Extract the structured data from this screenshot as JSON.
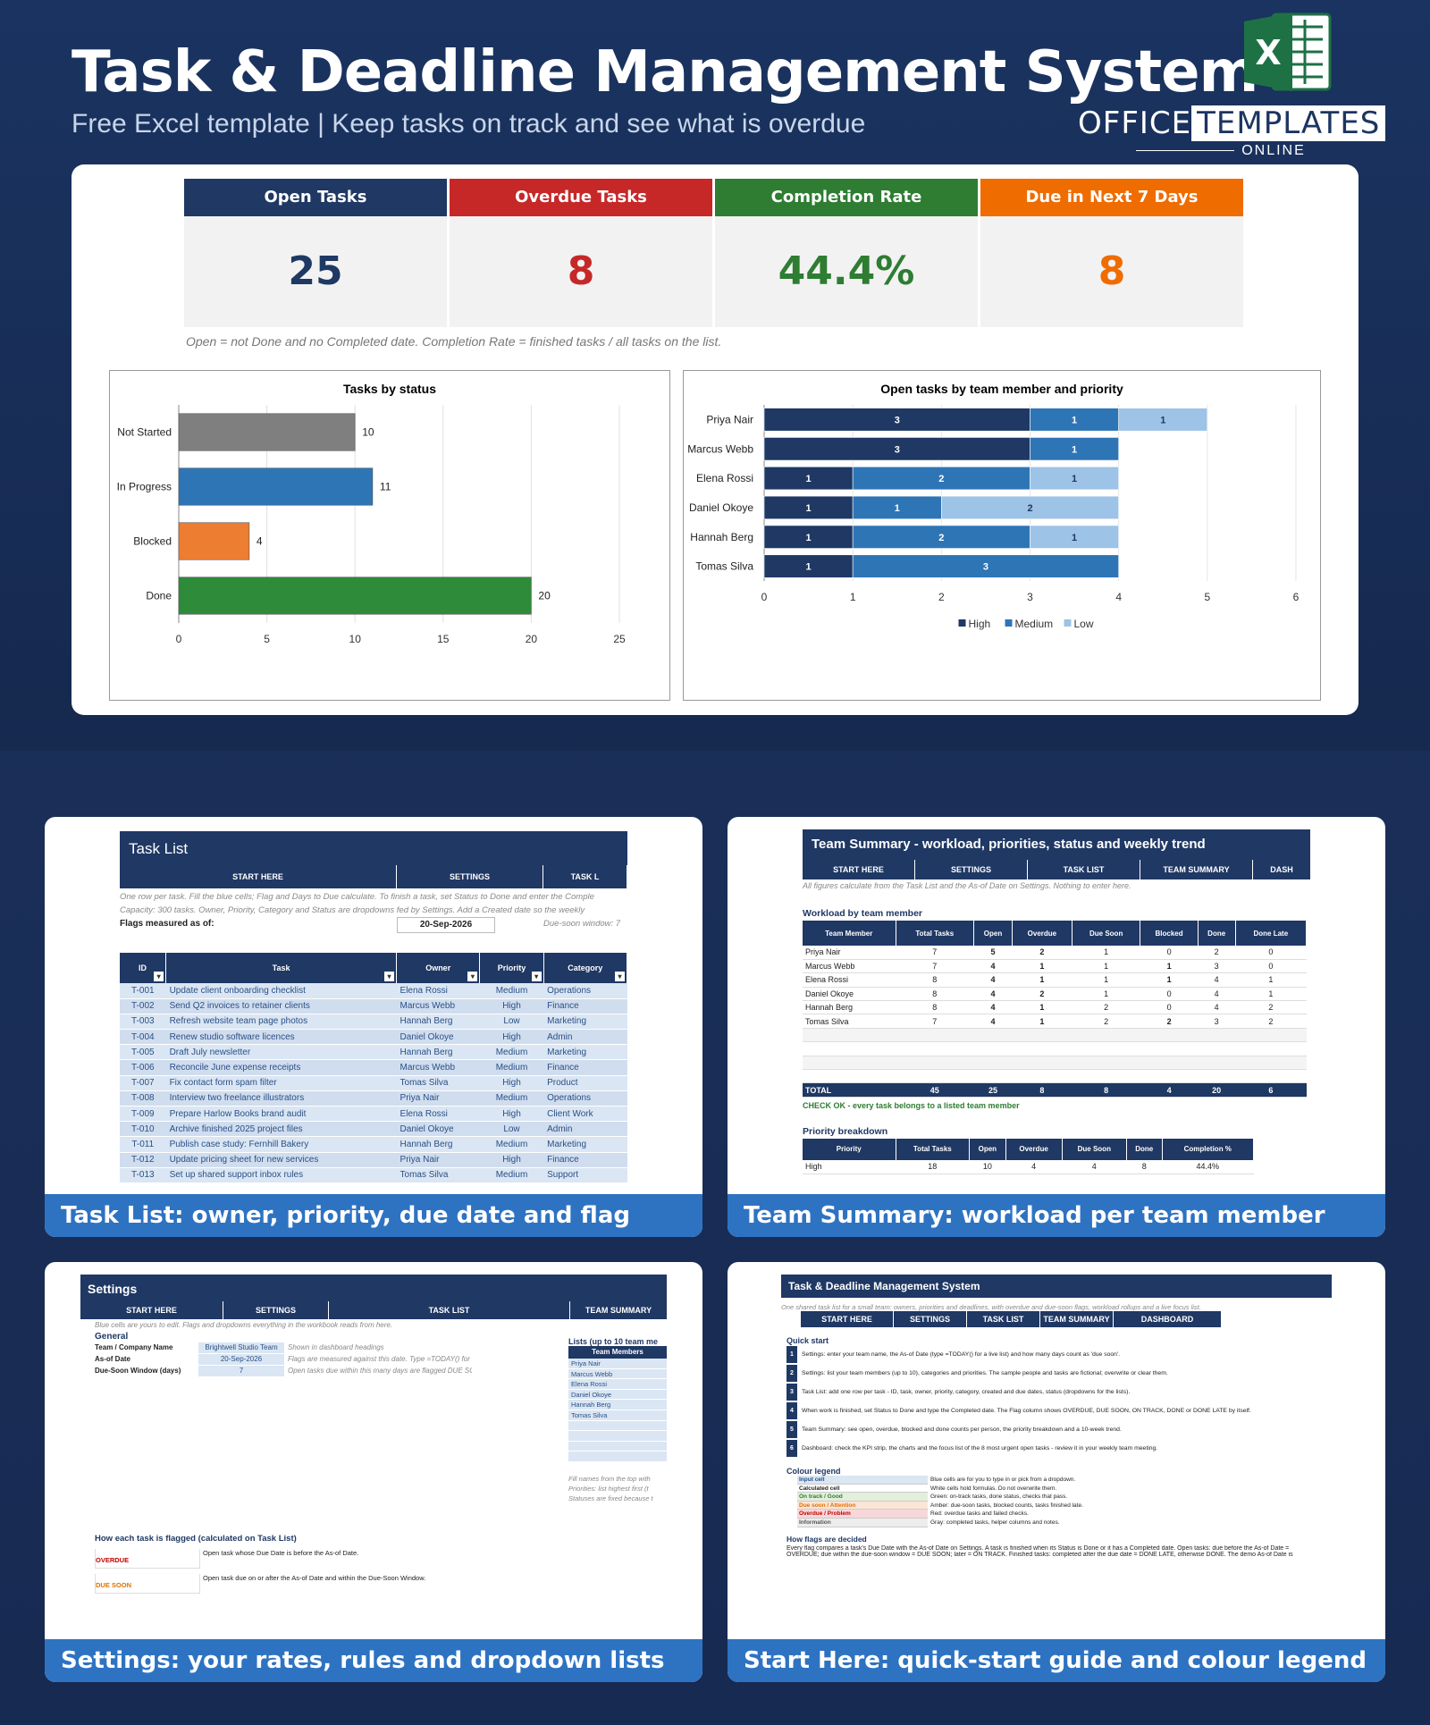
{
  "header": {
    "title": "Task & Deadline Management System",
    "subtitle": "Free Excel template  |  Keep tasks on track and see what is overdue",
    "brand_left": "OFFICE",
    "brand_right": "TEMPLATES",
    "brand_online": "ONLINE",
    "excel_icon_letter": "X"
  },
  "kpis": [
    {
      "label": "Open Tasks",
      "value": "25",
      "color": "#1f3864",
      "value_color": "#1f3864"
    },
    {
      "label": "Overdue Tasks",
      "value": "8",
      "color": "#c62828",
      "value_color": "#c62828"
    },
    {
      "label": "Completion Rate",
      "value": "44.4%",
      "color": "#2e7d32",
      "value_color": "#2e7d32"
    },
    {
      "label": "Due in Next 7 Days",
      "value": "8",
      "color": "#ef6c00",
      "value_color": "#ef6c00"
    }
  ],
  "kpi_note": "Open = not Done and no Completed date. Completion Rate = finished tasks / all tasks on the list.",
  "chart_data": [
    {
      "type": "bar",
      "title": "Tasks by status",
      "categories": [
        "Not Started",
        "In Progress",
        "Blocked",
        "Done"
      ],
      "values": [
        10,
        11,
        4,
        20
      ],
      "colors": [
        "#7f7f7f",
        "#2e75b6",
        "#ed7d31",
        "#2e8b3a"
      ],
      "xlim": [
        0,
        25
      ],
      "xticks": [
        0,
        5,
        10,
        15,
        20,
        25
      ]
    },
    {
      "type": "bar",
      "stacked": true,
      "title": "Open tasks by team member and priority",
      "categories": [
        "Priya Nair",
        "Marcus Webb",
        "Elena Rossi",
        "Daniel Okoye",
        "Hannah Berg",
        "Tomas Silva"
      ],
      "series": [
        {
          "name": "High",
          "color": "#1f3864",
          "values": [
            3,
            3,
            1,
            1,
            1,
            1
          ]
        },
        {
          "name": "Medium",
          "color": "#2e75b6",
          "values": [
            1,
            1,
            2,
            1,
            2,
            3
          ]
        },
        {
          "name": "Low",
          "color": "#9dc3e6",
          "values": [
            1,
            0,
            1,
            2,
            1,
            0
          ]
        }
      ],
      "xlim": [
        0,
        6
      ],
      "xticks": [
        0,
        1,
        2,
        3,
        4,
        5,
        6
      ],
      "legend": "bottom"
    }
  ],
  "cards": {
    "task_list": {
      "caption": "Task List: owner, priority, due date and flag",
      "sheet_title": "Task List",
      "nav": [
        "START HERE",
        "SETTINGS",
        "TASK L"
      ],
      "note1": "One row per task. Fill the blue cells; Flag and Days to Due calculate. To finish a task, set Status to Done and enter the Comple",
      "note2": "Capacity: 300 tasks. Owner, Priority, Category and Status are dropdowns fed by Settings. Add a Created date so the weekly",
      "flags_label": "Flags measured as of:",
      "flags_date": "20-Sep-2026",
      "due_window": "Due-soon window: 7",
      "columns": [
        "ID",
        "Task",
        "Owner",
        "Priority",
        "Category"
      ],
      "rows": [
        [
          "T-001",
          "Update client onboarding checklist",
          "Elena Rossi",
          "Medium",
          "Operations"
        ],
        [
          "T-002",
          "Send Q2 invoices to retainer clients",
          "Marcus Webb",
          "High",
          "Finance"
        ],
        [
          "T-003",
          "Refresh website team page photos",
          "Hannah Berg",
          "Low",
          "Marketing"
        ],
        [
          "T-004",
          "Renew studio software licences",
          "Daniel Okoye",
          "High",
          "Admin"
        ],
        [
          "T-005",
          "Draft July newsletter",
          "Hannah Berg",
          "Medium",
          "Marketing"
        ],
        [
          "T-006",
          "Reconcile June expense receipts",
          "Marcus Webb",
          "Medium",
          "Finance"
        ],
        [
          "T-007",
          "Fix contact form spam filter",
          "Tomas Silva",
          "High",
          "Product"
        ],
        [
          "T-008",
          "Interview two freelance illustrators",
          "Priya Nair",
          "Medium",
          "Operations"
        ],
        [
          "T-009",
          "Prepare Harlow Books brand audit",
          "Elena Rossi",
          "High",
          "Client Work"
        ],
        [
          "T-010",
          "Archive finished 2025 project files",
          "Daniel Okoye",
          "Low",
          "Admin"
        ],
        [
          "T-011",
          "Publish case study: Fernhill Bakery",
          "Hannah Berg",
          "Medium",
          "Marketing"
        ],
        [
          "T-012",
          "Update pricing sheet for new services",
          "Priya Nair",
          "High",
          "Finance"
        ],
        [
          "T-013",
          "Set up shared support inbox rules",
          "Tomas Silva",
          "Medium",
          "Support"
        ]
      ]
    },
    "team_summary": {
      "caption": "Team Summary: workload per team member",
      "sheet_title": "Team Summary - workload, priorities, status and weekly trend",
      "nav": [
        "START HERE",
        "SETTINGS",
        "TASK LIST",
        "TEAM SUMMARY",
        "DASH"
      ],
      "note": "All figures calculate from the Task List and the As-of Date on Settings. Nothing to enter here.",
      "section1": "Workload by team member",
      "columns": [
        "Team Member",
        "Total Tasks",
        "Open",
        "Overdue",
        "Due Soon",
        "Blocked",
        "Done",
        "Done Late"
      ],
      "rows": [
        [
          "Priya Nair",
          "7",
          "5",
          "2",
          "1",
          "0",
          "2",
          "0"
        ],
        [
          "Marcus Webb",
          "7",
          "4",
          "1",
          "1",
          "1",
          "3",
          "0"
        ],
        [
          "Elena Rossi",
          "8",
          "4",
          "1",
          "1",
          "1",
          "4",
          "1"
        ],
        [
          "Daniel Okoye",
          "8",
          "4",
          "2",
          "1",
          "0",
          "4",
          "1"
        ],
        [
          "Hannah Berg",
          "8",
          "4",
          "1",
          "2",
          "0",
          "4",
          "2"
        ],
        [
          "Tomas Silva",
          "7",
          "4",
          "1",
          "2",
          "2",
          "3",
          "2"
        ]
      ],
      "total": [
        "TOTAL",
        "45",
        "25",
        "8",
        "8",
        "4",
        "20",
        "6"
      ],
      "check": "CHECK OK - every task belongs to a listed team member",
      "section2": "Priority breakdown",
      "pcolumns": [
        "Priority",
        "Total Tasks",
        "Open",
        "Overdue",
        "Due Soon",
        "Done",
        "Completion %"
      ],
      "prow": [
        "High",
        "18",
        "10",
        "4",
        "4",
        "8",
        "44.4%"
      ]
    },
    "settings": {
      "caption": "Settings: your rates, rules and dropdown lists",
      "sheet_title": "Settings",
      "nav": [
        "START HERE",
        "SETTINGS",
        "TASK LIST",
        "TEAM SUMMARY"
      ],
      "note": "Blue cells are yours to edit. Flags and dropdowns everything in the workbook reads from here.",
      "general": "General",
      "fields": [
        [
          "Team / Company Name",
          "Brightwell Studio Team",
          "Shown in dashboard headings"
        ],
        [
          "As-of Date",
          "20-Sep-2026",
          "Flags are measured against this date. Type =TODAY() for a live list"
        ],
        [
          "Due-Soon Window (days)",
          "7",
          "Open tasks due within this many days are flagged DUE SOON"
        ]
      ],
      "lists_title": "Lists (up to 10 team me",
      "lists_header": "Team Members",
      "members": [
        "Priya Nair",
        "Marcus Webb",
        "Elena Rossi",
        "Daniel Okoye",
        "Hannah Berg",
        "Tomas Silva"
      ],
      "side_notes": [
        "Fill names from the top with",
        "Priorities: list highest first (t",
        "Statuses are fixed because t"
      ],
      "flag_title": "How each task is flagged (calculated on Task List)",
      "flags": [
        [
          "OVERDUE",
          "Open task whose Due Date is before the As-of Date."
        ],
        [
          "DUE SOON",
          "Open task due on or after the As-of Date and within the Due-Soon Window."
        ]
      ]
    },
    "start_here": {
      "caption": "Start Here: quick-start guide and colour legend",
      "sheet_title": "Task & Deadline Management System",
      "note": "One shared task list for a small team: owners, priorities and deadlines, with overdue and due-soon flags, workload rollups and a live focus list.",
      "nav": [
        "START HERE",
        "SETTINGS",
        "TASK LIST",
        "TEAM SUMMARY",
        "DASHBOARD"
      ],
      "quick": "Quick start",
      "steps": [
        [
          "1",
          "Settings: enter your team name, the As-of Date (type =TODAY() for a live list) and how many days count as 'due soon'."
        ],
        [
          "2",
          "Settings: list your team members (up to 10), categories and priorities. The sample people and tasks are fictional; overwrite or clear them."
        ],
        [
          "3",
          "Task List: add one row per task - ID, task, owner, priority, category, created and due dates, status (dropdowns for the lists)."
        ],
        [
          "4",
          "When work is finished, set Status to Done and type the Completed date. The Flag column shows OVERDUE, DUE SOON, ON TRACK, DONE or DONE LATE by itself."
        ],
        [
          "5",
          "Team Summary: see open, overdue, blocked and done counts per person, the priority breakdown and a 10-week trend."
        ],
        [
          "6",
          "Dashboard: check the KPI strip, the charts and the focus list of the 8 most urgent open tasks - review it in your weekly team meeting."
        ]
      ],
      "legend_title": "Colour legend",
      "legend": [
        [
          "Input cell",
          "Blue cells are for you to type in or pick from a dropdown.",
          "#dae6f3",
          "#2a4f86"
        ],
        [
          "Calculated cell",
          "White cells hold formulas. Do not overwrite them.",
          "#ffffff",
          "#222222"
        ],
        [
          "On track / Good",
          "Green: on-track tasks, done status, checks that pass.",
          "#e2efda",
          "#2e7d32"
        ],
        [
          "Due soon / Attention",
          "Amber: due-soon tasks, blocked counts, tasks finished late.",
          "#fce4d6",
          "#e07000"
        ],
        [
          "Overdue / Problem",
          "Red: overdue tasks and failed checks.",
          "#f8d7da",
          "#c00000"
        ],
        [
          "Information",
          "Gray: completed tasks, helper columns and notes.",
          "#ededed",
          "#555555"
        ]
      ],
      "how_title": "How flags are decided",
      "how1": "Every flag compares a task's Due Date with the As-of Date on Settings. A task is finished when its Status is Done or it has a Completed date. Open tasks: due before the As-of Date =",
      "how2": "OVERDUE; due within the due-soon window = DUE SOON; later = ON TRACK. Finished tasks: completed after the due date = DONE LATE, otherwise DONE. The demo As-of Date is"
    }
  }
}
